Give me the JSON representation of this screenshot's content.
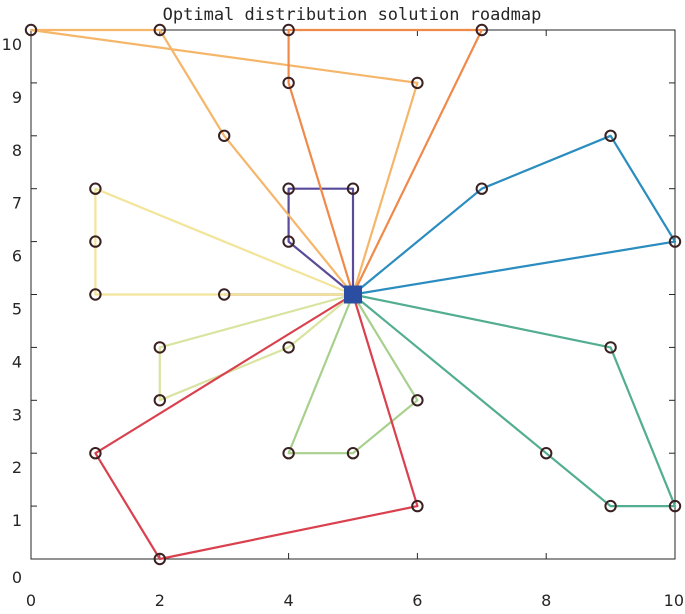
{
  "chart_data": {
    "type": "line",
    "title": "Optimal distribution solution roadmap",
    "xlabel": "",
    "ylabel": "",
    "xlim": [
      0,
      10
    ],
    "ylim": [
      0,
      10
    ],
    "xticks": [
      "0",
      "2",
      "4",
      "6",
      "8",
      "10"
    ],
    "yticks": [
      "0",
      "1",
      "2",
      "3",
      "4",
      "5",
      "6",
      "7",
      "8",
      "9",
      "10"
    ],
    "grid": false,
    "depot": {
      "x": 5,
      "y": 5,
      "color": "#2b4ea2"
    },
    "routes": [
      {
        "color": "#8b1a2e",
        "points": [
          [
            5,
            5
          ],
          [
            3,
            5
          ],
          [
            5,
            5
          ]
        ]
      },
      {
        "color": "#5a4a9a",
        "points": [
          [
            5,
            5
          ],
          [
            4,
            6
          ],
          [
            4,
            7
          ],
          [
            5,
            7
          ],
          [
            5,
            5
          ]
        ]
      },
      {
        "color": "#2a8cbf",
        "points": [
          [
            5,
            5
          ],
          [
            7,
            7
          ],
          [
            9,
            8
          ],
          [
            10,
            6
          ],
          [
            5,
            5
          ]
        ]
      },
      {
        "color": "#52ad91",
        "points": [
          [
            5,
            5
          ],
          [
            9,
            4
          ],
          [
            10,
            1
          ],
          [
            9,
            1
          ],
          [
            8,
            2
          ],
          [
            5,
            5
          ]
        ]
      },
      {
        "color": "#a8d08d",
        "points": [
          [
            5,
            5
          ],
          [
            6,
            3
          ],
          [
            5,
            2
          ],
          [
            4,
            2
          ],
          [
            5,
            5
          ]
        ]
      },
      {
        "color": "#d8e4a0",
        "points": [
          [
            5,
            5
          ],
          [
            4,
            4
          ],
          [
            2,
            3
          ],
          [
            2,
            4
          ],
          [
            5,
            5
          ]
        ]
      },
      {
        "color": "#d9414f",
        "points": [
          [
            5,
            5
          ],
          [
            6,
            1
          ],
          [
            2,
            0
          ],
          [
            1,
            2
          ],
          [
            5,
            5
          ]
        ]
      },
      {
        "color": "#f2e59a",
        "points": [
          [
            5,
            5
          ],
          [
            1,
            5
          ],
          [
            1,
            6
          ],
          [
            1,
            7
          ],
          [
            5,
            5
          ]
        ]
      },
      {
        "color": "#f5b66a",
        "points": [
          [
            5,
            5
          ],
          [
            3,
            8
          ],
          [
            2,
            10
          ],
          [
            0,
            10
          ],
          [
            6,
            9
          ],
          [
            5,
            5
          ]
        ]
      },
      {
        "color": "#ef8a4a",
        "points": [
          [
            5,
            5
          ],
          [
            4,
            9
          ],
          [
            4,
            10
          ],
          [
            7,
            10
          ],
          [
            5,
            5
          ]
        ]
      }
    ],
    "customers": [
      [
        3,
        5
      ],
      [
        4,
        6
      ],
      [
        4,
        7
      ],
      [
        5,
        7
      ],
      [
        7,
        7
      ],
      [
        9,
        8
      ],
      [
        10,
        6
      ],
      [
        9,
        4
      ],
      [
        10,
        1
      ],
      [
        9,
        1
      ],
      [
        8,
        2
      ],
      [
        6,
        3
      ],
      [
        5,
        2
      ],
      [
        4,
        2
      ],
      [
        4,
        4
      ],
      [
        2,
        3
      ],
      [
        2,
        4
      ],
      [
        6,
        1
      ],
      [
        2,
        0
      ],
      [
        1,
        2
      ],
      [
        1,
        5
      ],
      [
        1,
        6
      ],
      [
        1,
        7
      ],
      [
        3,
        8
      ],
      [
        2,
        10
      ],
      [
        0,
        10
      ],
      [
        6,
        9
      ],
      [
        4,
        9
      ],
      [
        4,
        10
      ],
      [
        7,
        10
      ]
    ]
  }
}
